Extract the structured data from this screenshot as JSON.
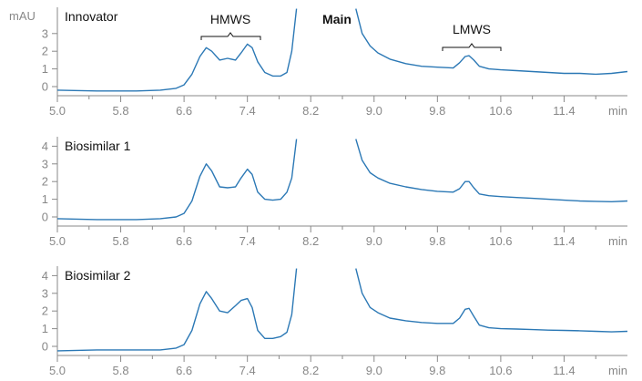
{
  "chart_data": {
    "type": "line",
    "colors": {
      "trace": "#2b78b5",
      "axis": "#8a8a8a",
      "text": "#111111",
      "tick_text": "#888888"
    },
    "yunit": "mAU",
    "xunit": "min",
    "xlim": [
      5.0,
      12.2
    ],
    "ylim": [
      -0.5,
      4.5
    ],
    "x_ticks": [
      "5.0",
      "5.8",
      "6.6",
      "7.4",
      "8.2",
      "9.0",
      "9.8",
      "10.6",
      "11.4"
    ],
    "y_ticks": [
      "0",
      "1",
      "2",
      "3",
      "4"
    ],
    "annotations": {
      "hmws": "HMWS",
      "main": "Main",
      "lmws": "LMWS"
    },
    "gap": [
      8.02,
      8.77
    ],
    "panels": [
      {
        "name": "Innovator",
        "y_ticks": [
          "0",
          "1",
          "2",
          "3"
        ],
        "segments": [
          {
            "x": [
              5.0,
              5.5,
              6.0,
              6.3,
              6.5,
              6.6,
              6.7,
              6.8,
              6.88,
              6.95,
              7.05,
              7.15,
              7.25,
              7.32,
              7.4,
              7.46,
              7.53,
              7.62,
              7.72,
              7.82,
              7.9,
              7.96,
              8.02
            ],
            "y": [
              -0.2,
              -0.25,
              -0.25,
              -0.2,
              -0.1,
              0.1,
              0.7,
              1.7,
              2.2,
              2.0,
              1.5,
              1.6,
              1.5,
              1.9,
              2.4,
              2.2,
              1.4,
              0.8,
              0.6,
              0.6,
              0.8,
              2.0,
              4.4
            ]
          },
          {
            "x": [
              8.77,
              8.85,
              8.95,
              9.05,
              9.2,
              9.4,
              9.6,
              9.8,
              10.0,
              10.08,
              10.15,
              10.2,
              10.26,
              10.33,
              10.45,
              10.6,
              10.8,
              11.0,
              11.2,
              11.4,
              11.6,
              11.8,
              12.0,
              12.2
            ],
            "y": [
              4.4,
              3.0,
              2.3,
              1.9,
              1.55,
              1.3,
              1.15,
              1.1,
              1.05,
              1.35,
              1.7,
              1.75,
              1.5,
              1.15,
              1.0,
              0.95,
              0.9,
              0.85,
              0.8,
              0.75,
              0.75,
              0.7,
              0.75,
              0.85
            ]
          }
        ]
      },
      {
        "name": "Biosimilar 1",
        "y_ticks": [
          "0",
          "1",
          "2",
          "3",
          "4"
        ],
        "segments": [
          {
            "x": [
              5.0,
              5.5,
              6.0,
              6.3,
              6.5,
              6.6,
              6.7,
              6.8,
              6.88,
              6.95,
              7.05,
              7.15,
              7.25,
              7.32,
              7.4,
              7.46,
              7.53,
              7.62,
              7.72,
              7.82,
              7.9,
              7.96,
              8.02
            ],
            "y": [
              -0.1,
              -0.15,
              -0.15,
              -0.1,
              0.0,
              0.2,
              0.9,
              2.3,
              3.0,
              2.6,
              1.7,
              1.65,
              1.7,
              2.2,
              2.7,
              2.4,
              1.4,
              1.0,
              0.95,
              1.0,
              1.4,
              2.2,
              4.4
            ]
          },
          {
            "x": [
              8.77,
              8.85,
              8.95,
              9.05,
              9.2,
              9.4,
              9.6,
              9.8,
              10.0,
              10.08,
              10.15,
              10.2,
              10.26,
              10.33,
              10.45,
              10.6,
              10.8,
              11.0,
              11.2,
              11.4,
              11.6,
              11.8,
              12.0,
              12.2
            ],
            "y": [
              4.4,
              3.2,
              2.5,
              2.2,
              1.9,
              1.7,
              1.55,
              1.45,
              1.4,
              1.6,
              2.0,
              2.0,
              1.65,
              1.3,
              1.2,
              1.15,
              1.1,
              1.05,
              1.0,
              0.95,
              0.9,
              0.88,
              0.86,
              0.9
            ]
          }
        ]
      },
      {
        "name": "Biosimilar 2",
        "y_ticks": [
          "0",
          "1",
          "2",
          "3",
          "4"
        ],
        "segments": [
          {
            "x": [
              5.0,
              5.5,
              6.0,
              6.3,
              6.5,
              6.6,
              6.7,
              6.8,
              6.88,
              6.95,
              7.05,
              7.15,
              7.25,
              7.32,
              7.4,
              7.46,
              7.53,
              7.62,
              7.72,
              7.82,
              7.9,
              7.96,
              8.02
            ],
            "y": [
              -0.25,
              -0.2,
              -0.2,
              -0.2,
              -0.1,
              0.1,
              0.9,
              2.4,
              3.1,
              2.7,
              2.0,
              1.9,
              2.3,
              2.6,
              2.7,
              2.2,
              0.9,
              0.45,
              0.45,
              0.55,
              0.8,
              1.8,
              4.4
            ]
          },
          {
            "x": [
              8.77,
              8.85,
              8.95,
              9.05,
              9.2,
              9.4,
              9.6,
              9.8,
              10.0,
              10.08,
              10.15,
              10.2,
              10.26,
              10.33,
              10.45,
              10.6,
              10.8,
              11.0,
              11.2,
              11.4,
              11.6,
              11.8,
              12.0,
              12.2
            ],
            "y": [
              4.4,
              3.0,
              2.2,
              1.9,
              1.6,
              1.45,
              1.35,
              1.3,
              1.3,
              1.6,
              2.1,
              2.15,
              1.7,
              1.2,
              1.05,
              1.0,
              0.98,
              0.95,
              0.92,
              0.9,
              0.88,
              0.85,
              0.82,
              0.85
            ]
          }
        ]
      }
    ]
  }
}
